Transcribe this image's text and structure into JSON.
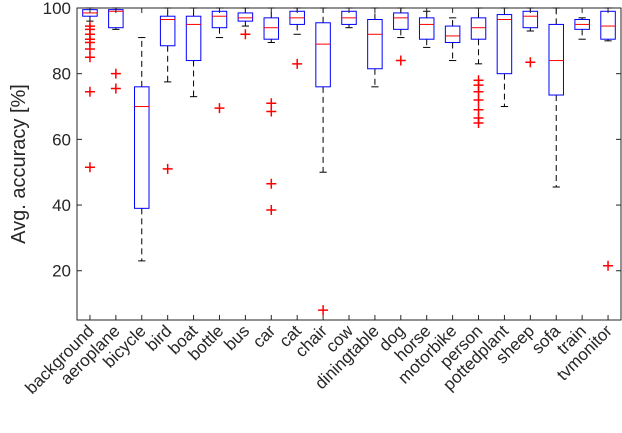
{
  "chart_data": {
    "type": "box",
    "title": "",
    "xlabel": "",
    "ylabel": "Avg. accuracy [%]",
    "ylim": [
      5,
      100
    ],
    "yticks": [
      20,
      40,
      60,
      80,
      100
    ],
    "grid": false,
    "legend": "none",
    "colors": {
      "box": "#0000ff",
      "median": "#ff0000",
      "whisker": "#000000",
      "outlier": "#ff0000"
    },
    "categories": [
      "background",
      "aeroplane",
      "bicycle",
      "bird",
      "boat",
      "bottle",
      "bus",
      "car",
      "cat",
      "chair",
      "cow",
      "diningtable",
      "dog",
      "horse",
      "motorbike",
      "person",
      "pottedplant",
      "sheep",
      "sofa",
      "train",
      "tvmonitor"
    ],
    "boxes": [
      {
        "min": 96,
        "q1": 97.5,
        "median": 98.5,
        "q3": 99.5,
        "max": 100,
        "outliers": [
          94.5,
          93.5,
          92,
          90.5,
          89.5,
          87.5,
          85,
          74.5,
          51.5
        ]
      },
      {
        "min": 93.5,
        "q1": 94,
        "median": 99,
        "q3": 99.5,
        "max": 100,
        "outliers": [
          80,
          75.5
        ]
      },
      {
        "min": 23,
        "q1": 39,
        "median": 70,
        "q3": 76,
        "max": 91,
        "outliers": []
      },
      {
        "min": 77.5,
        "q1": 88.5,
        "median": 96.5,
        "q3": 97.5,
        "max": 100,
        "outliers": [
          51
        ]
      },
      {
        "min": 73,
        "q1": 84,
        "median": 95,
        "q3": 97.5,
        "max": 100,
        "outliers": []
      },
      {
        "min": 91,
        "q1": 94,
        "median": 97.5,
        "q3": 99,
        "max": 100,
        "outliers": [
          69.5
        ]
      },
      {
        "min": 94.5,
        "q1": 96,
        "median": 97,
        "q3": 98.5,
        "max": 100,
        "outliers": [
          92
        ]
      },
      {
        "min": 89.5,
        "q1": 90.5,
        "median": 94,
        "q3": 97,
        "max": 100,
        "outliers": [
          71,
          68.5,
          46.5,
          38.5
        ]
      },
      {
        "min": 92,
        "q1": 95,
        "median": 97,
        "q3": 99,
        "max": 100,
        "outliers": [
          83
        ]
      },
      {
        "min": 50,
        "q1": 76,
        "median": 89,
        "q3": 95.5,
        "max": 100,
        "outliers": [
          8
        ]
      },
      {
        "min": 94,
        "q1": 95,
        "median": 97,
        "q3": 99,
        "max": 100,
        "outliers": []
      },
      {
        "min": 76,
        "q1": 81.5,
        "median": 92,
        "q3": 96.5,
        "max": 100,
        "outliers": []
      },
      {
        "min": 91,
        "q1": 93.5,
        "median": 97,
        "q3": 98.5,
        "max": 100,
        "outliers": [
          84
        ]
      },
      {
        "min": 88,
        "q1": 90.5,
        "median": 95,
        "q3": 97,
        "max": 99,
        "outliers": []
      },
      {
        "min": 84,
        "q1": 89.5,
        "median": 91.5,
        "q3": 94.5,
        "max": 97,
        "outliers": []
      },
      {
        "min": 83,
        "q1": 90.5,
        "median": 94,
        "q3": 97,
        "max": 100,
        "outliers": [
          78,
          76.5,
          74.5,
          72,
          69,
          66.5,
          65
        ]
      },
      {
        "min": 70,
        "q1": 80,
        "median": 96.5,
        "q3": 98,
        "max": 100,
        "outliers": []
      },
      {
        "min": 93,
        "q1": 94,
        "median": 97.5,
        "q3": 99,
        "max": 100,
        "outliers": [
          83.5
        ]
      },
      {
        "min": 45.5,
        "q1": 73.5,
        "median": 84,
        "q3": 95,
        "max": 100,
        "outliers": []
      },
      {
        "min": 90.5,
        "q1": 93.5,
        "median": 95,
        "q3": 96.5,
        "max": 97,
        "outliers": []
      },
      {
        "min": 90,
        "q1": 90.5,
        "median": 94.5,
        "q3": 99,
        "max": 100,
        "outliers": [
          21.5
        ]
      }
    ]
  }
}
